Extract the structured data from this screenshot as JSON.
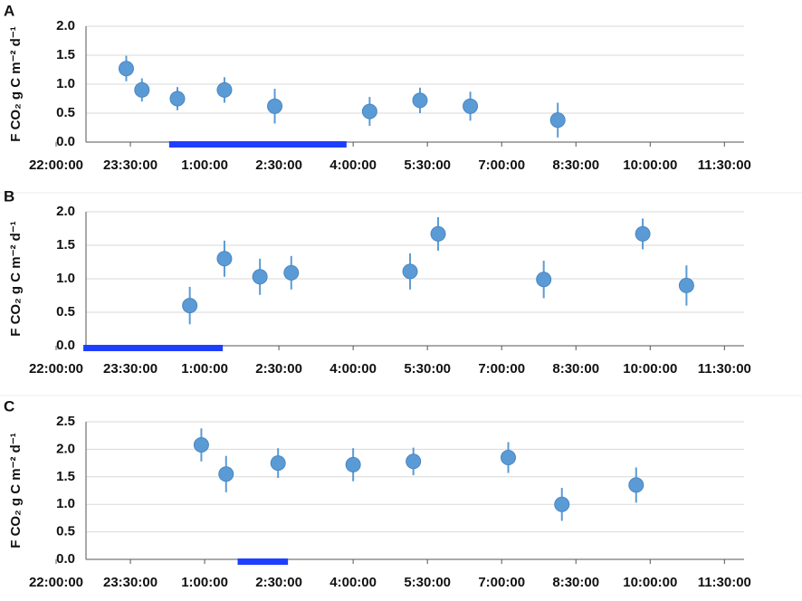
{
  "chart_data": [
    {
      "type": "scatter",
      "panel_label": "A",
      "y_label": "F CO₂ g C m⁻² d⁻¹",
      "color": "#5b9bd5",
      "bar_color": "#1f3fff",
      "x": [
        "23:25:00",
        "23:44:00",
        "00:27:00",
        "01:24:00",
        "02:25:00",
        "04:20:00",
        "05:21:00",
        "06:22:00",
        "08:08:00"
      ],
      "values": [
        1.27,
        0.9,
        0.75,
        0.9,
        0.62,
        0.53,
        0.72,
        0.62,
        0.38
      ],
      "errors": [
        0.22,
        0.2,
        0.2,
        0.22,
        0.3,
        0.25,
        0.22,
        0.25,
        0.3
      ],
      "dark_period": [
        "00:17:00",
        "03:52:00"
      ],
      "xlim": [
        "22:00:00",
        "12:30:00"
      ],
      "xticks": [
        "22:00:00",
        "23:30:00",
        "1:00:00",
        "2:30:00",
        "4:00:00",
        "5:30:00",
        "7:00:00",
        "8:30:00",
        "10:00:00",
        "11:30:00"
      ],
      "ylim": [
        0,
        2
      ],
      "yticks": [
        {
          "value": 0,
          "label": "0.0"
        },
        {
          "value": 0.5,
          "label": "0.5"
        },
        {
          "value": 1,
          "label": "1.0"
        },
        {
          "value": 1.5,
          "label": "1.5"
        },
        {
          "value": 2,
          "label": "2.0"
        }
      ],
      "grid": true
    },
    {
      "type": "scatter",
      "panel_label": "B",
      "y_label": "F CO₂ g C m⁻² d⁻¹",
      "color": "#5b9bd5",
      "bar_color": "#1f3fff",
      "x": [
        "00:42:00",
        "01:24:00",
        "02:07:00",
        "02:45:00",
        "05:09:00",
        "05:43:00",
        "07:51:00",
        "09:51:00",
        "10:44:00"
      ],
      "values": [
        0.6,
        1.3,
        1.03,
        1.09,
        1.11,
        1.67,
        0.99,
        1.67,
        0.9
      ],
      "errors": [
        0.28,
        0.27,
        0.27,
        0.25,
        0.27,
        0.25,
        0.28,
        0.23,
        0.3
      ],
      "dark_period": [
        "22:33:00",
        "01:22:00"
      ],
      "xlim": [
        "22:00:00",
        "12:30:00"
      ],
      "xticks": [
        "22:00:00",
        "23:30:00",
        "1:00:00",
        "2:30:00",
        "4:00:00",
        "5:30:00",
        "7:00:00",
        "8:30:00",
        "10:00:00",
        "11:30:00"
      ],
      "ylim": [
        0,
        2
      ],
      "yticks": [
        {
          "value": 0,
          "label": "0.0"
        },
        {
          "value": 0.5,
          "label": "0.5"
        },
        {
          "value": 1,
          "label": "1.0"
        },
        {
          "value": 1.5,
          "label": "1.5"
        },
        {
          "value": 2,
          "label": "2.0"
        }
      ],
      "grid": true
    },
    {
      "type": "scatter",
      "panel_label": "C",
      "y_label": "F CO₂ g C m⁻² d⁻¹",
      "color": "#5b9bd5",
      "bar_color": "#1f3fff",
      "x": [
        "00:56:00",
        "01:26:00",
        "02:29:00",
        "04:00:00",
        "05:13:00",
        "07:08:00",
        "08:13:00",
        "09:43:00"
      ],
      "values": [
        2.08,
        1.55,
        1.75,
        1.72,
        1.78,
        1.85,
        1.0,
        1.35
      ],
      "errors": [
        0.3,
        0.33,
        0.27,
        0.3,
        0.25,
        0.28,
        0.3,
        0.32
      ],
      "dark_period": [
        "01:40:00",
        "02:41:00"
      ],
      "xlim": [
        "22:00:00",
        "12:30:00"
      ],
      "xticks": [
        "22:00:00",
        "23:30:00",
        "1:00:00",
        "2:30:00",
        "4:00:00",
        "5:30:00",
        "7:00:00",
        "8:30:00",
        "10:00:00",
        "11:30:00"
      ],
      "ylim": [
        0,
        2.5
      ],
      "yticks": [
        {
          "value": 0,
          "label": "0.0"
        },
        {
          "value": 0.5,
          "label": "0.5"
        },
        {
          "value": 1,
          "label": "1.0"
        },
        {
          "value": 1.5,
          "label": "1.5"
        },
        {
          "value": 2,
          "label": "2.0"
        },
        {
          "value": 2.5,
          "label": "2.5"
        }
      ],
      "grid": true
    }
  ]
}
